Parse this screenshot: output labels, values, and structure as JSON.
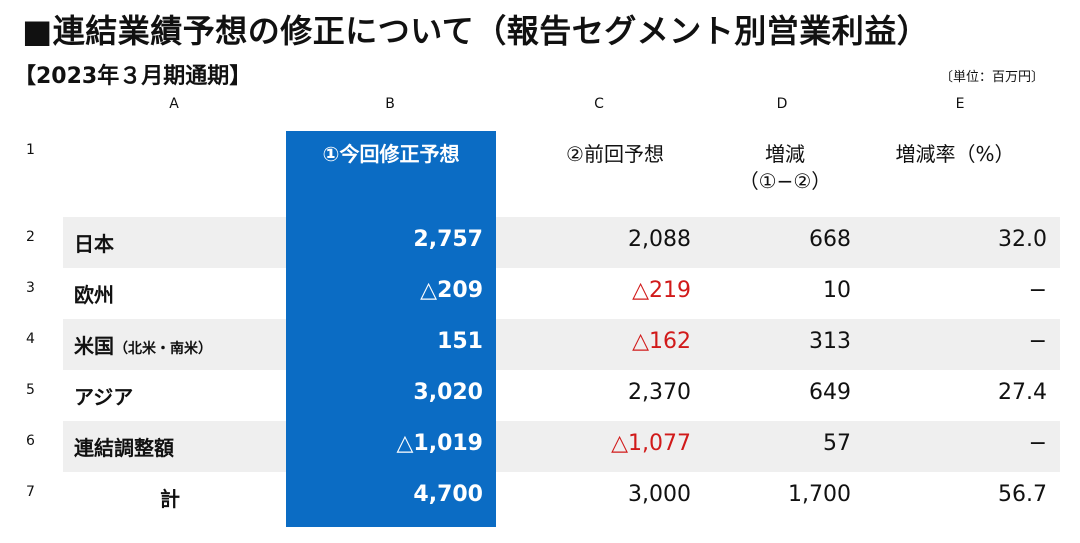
{
  "title": "■連結業績予想の修正について（報告セグメント別営業利益）",
  "subtitle": "【2023年３月期通期】",
  "unit": "〔単位：百万円〕",
  "columns": [
    "A",
    "B",
    "C",
    "D",
    "E"
  ],
  "row_numbers": [
    "1",
    "2",
    "3",
    "4",
    "5",
    "6",
    "7"
  ],
  "headers": {
    "b": "①今回修正予想",
    "c": "②前回予想",
    "d_line1": "増減",
    "d_line2": "（①−②）",
    "e": "増減率（%）"
  },
  "rows": [
    {
      "label": "日本",
      "label_note": "",
      "b": "2,757",
      "c": "2,088",
      "d": "668",
      "e": "32.0"
    },
    {
      "label": "欧州",
      "label_note": "",
      "b": "△209",
      "c": "△219",
      "d": "10",
      "e": "−"
    },
    {
      "label": "米国",
      "label_note": "（北米・南米）",
      "b": "151",
      "c": "△162",
      "d": "313",
      "e": "−"
    },
    {
      "label": "アジア",
      "label_note": "",
      "b": "3,020",
      "c": "2,370",
      "d": "649",
      "e": "27.4"
    },
    {
      "label": "連結調整額",
      "label_note": "",
      "b": "△1,019",
      "c": "△1,077",
      "d": "57",
      "e": "−"
    },
    {
      "label": "計",
      "label_note": "",
      "b": "4,700",
      "c": "3,000",
      "d": "1,700",
      "e": "56.7"
    }
  ],
  "colors": {
    "highlight_column": "#0b6cc4",
    "negative_previous": "#d11a1a",
    "row_shade": "#efefef"
  }
}
